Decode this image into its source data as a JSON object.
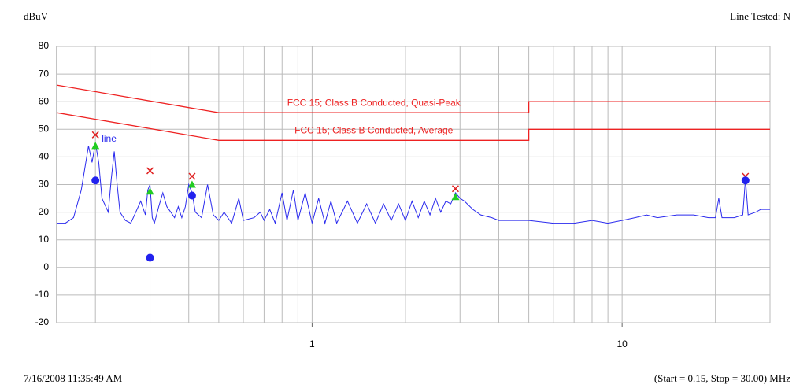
{
  "chart_data": {
    "type": "line",
    "y_axis_label": "dBuV",
    "top_right_label": "Line Tested: N",
    "timestamp": "7/16/2008 11:35:49 AM",
    "x_axis_label": "(Start = 0.15, Stop = 30.00) MHz",
    "xlim": [
      0.15,
      30
    ],
    "ylim": [
      -20,
      80
    ],
    "xscale": "log",
    "yticks": [
      -20,
      -10,
      0,
      10,
      20,
      30,
      40,
      50,
      60,
      70,
      80
    ],
    "xticks": [
      1,
      10
    ],
    "xgrid": [
      0.2,
      0.3,
      0.4,
      0.5,
      0.6,
      0.7,
      0.8,
      0.9,
      1,
      2,
      3,
      4,
      5,
      6,
      7,
      8,
      9,
      10,
      20,
      30
    ],
    "grid": true,
    "series": [
      {
        "name": "line",
        "color": "#2a2aee",
        "x": [
          0.15,
          0.16,
          0.17,
          0.18,
          0.19,
          0.195,
          0.2,
          0.205,
          0.21,
          0.22,
          0.225,
          0.23,
          0.235,
          0.24,
          0.25,
          0.26,
          0.27,
          0.28,
          0.29,
          0.295,
          0.3,
          0.305,
          0.31,
          0.32,
          0.33,
          0.34,
          0.35,
          0.36,
          0.37,
          0.38,
          0.39,
          0.4,
          0.41,
          0.42,
          0.44,
          0.46,
          0.48,
          0.5,
          0.52,
          0.55,
          0.58,
          0.6,
          0.65,
          0.68,
          0.7,
          0.73,
          0.76,
          0.8,
          0.83,
          0.87,
          0.9,
          0.95,
          1.0,
          1.05,
          1.1,
          1.15,
          1.2,
          1.3,
          1.4,
          1.5,
          1.6,
          1.7,
          1.8,
          1.9,
          2.0,
          2.1,
          2.2,
          2.3,
          2.4,
          2.5,
          2.6,
          2.7,
          2.8,
          2.9,
          3.0,
          3.1,
          3.3,
          3.5,
          3.8,
          4.0,
          4.5,
          5,
          6,
          7,
          8,
          9,
          10,
          11,
          12,
          13,
          15,
          17,
          19,
          20,
          20.5,
          21,
          23,
          24.5,
          25,
          25.5,
          27,
          28,
          30
        ],
        "values": [
          16,
          16,
          18,
          28,
          44,
          38,
          45,
          38,
          25,
          20,
          32,
          42,
          30,
          20,
          17,
          16,
          20,
          24,
          19,
          28,
          30,
          18,
          16,
          22,
          27,
          22,
          20,
          18,
          22,
          18,
          22,
          30,
          27,
          20,
          18,
          30,
          19,
          17,
          20,
          16,
          25,
          17,
          18,
          20,
          17,
          21,
          16,
          27,
          17,
          28,
          17,
          27,
          16,
          25,
          16,
          24,
          16,
          24,
          16,
          23,
          16,
          23,
          17,
          23,
          17,
          24,
          18,
          24,
          19,
          25,
          20,
          24,
          23,
          27,
          25,
          24,
          21,
          19,
          18,
          17,
          17,
          17,
          16,
          16,
          17,
          16,
          17,
          18,
          19,
          18,
          19,
          19,
          18,
          18,
          25,
          18,
          18,
          19,
          32,
          19,
          20,
          21,
          21
        ]
      }
    ],
    "limits": [
      {
        "name": "FCC 15; Class B Conducted, Quasi-Peak",
        "color": "#ee2222",
        "x": [
          0.15,
          0.5,
          5,
          5,
          30
        ],
        "values": [
          66,
          56,
          56,
          60,
          60
        ]
      },
      {
        "name": "FCC 15; Class B Conducted, Average",
        "color": "#ee2222",
        "x": [
          0.15,
          0.5,
          5,
          5,
          30
        ],
        "values": [
          56,
          46,
          46,
          50,
          50
        ]
      }
    ],
    "markers": [
      {
        "symbol": "cross",
        "color": "#e02020",
        "x": [
          0.2,
          0.3,
          0.41,
          2.9,
          25
        ],
        "values": [
          48,
          35,
          33,
          28.5,
          33
        ]
      },
      {
        "symbol": "triangle",
        "color": "#22cc22",
        "x": [
          0.2,
          0.3,
          0.41,
          2.9
        ],
        "values": [
          44,
          27.5,
          30,
          25.5
        ]
      },
      {
        "symbol": "circle",
        "color": "#2222ee",
        "x": [
          0.2,
          0.3,
          0.41,
          25
        ],
        "values": [
          31.5,
          3.5,
          26,
          31.5
        ]
      }
    ]
  }
}
